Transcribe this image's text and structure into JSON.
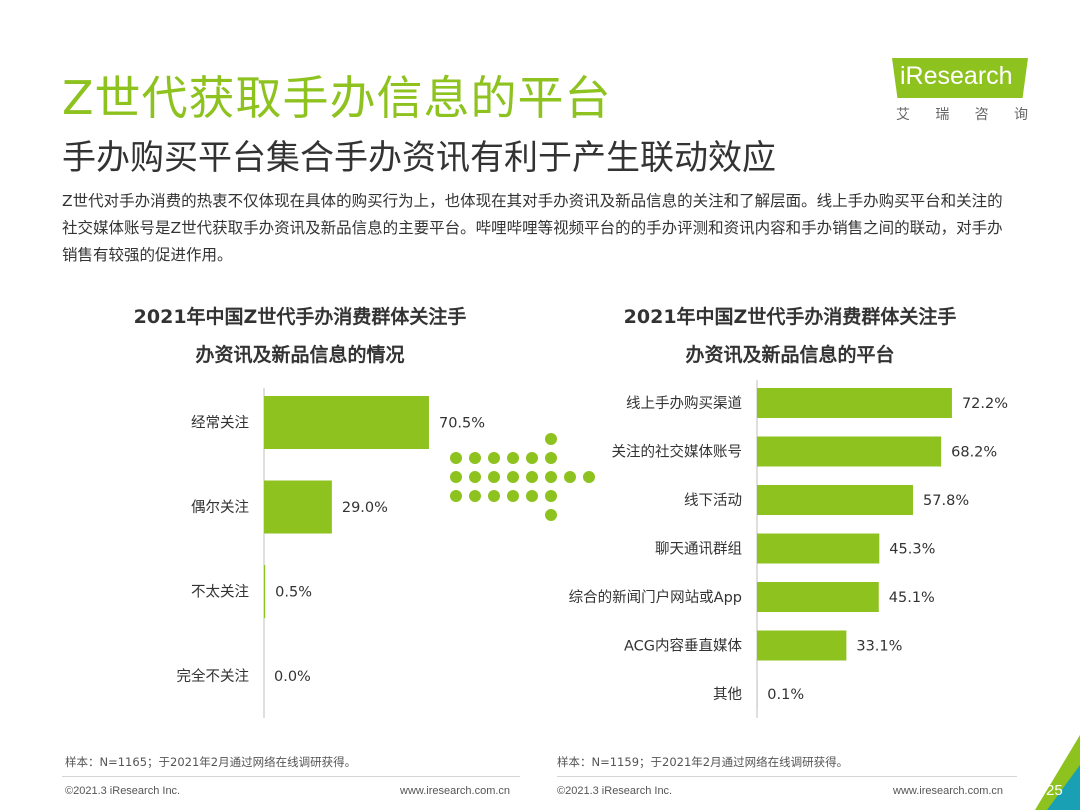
{
  "page": {
    "title": "Z世代获取手办信息的平台",
    "subtitle": "手办购买平台集合手办资讯有利于产生联动效应",
    "intro": "Z世代对手办消费的热衷不仅体现在具体的购买行为上，也体现在其对手办资讯及新品信息的关注和了解层面。线上手办购买平台和关注的社交媒体账号是Z世代获取手办资讯及新品信息的主要平台。哔哩哔哩等视频平台的的手办评测和资讯内容和手办销售之间的联动，对手办销售有较强的促进作用。",
    "page_number": "25"
  },
  "logo": {
    "text": "iResearch",
    "chars": [
      "艾",
      "瑞",
      "咨",
      "询"
    ]
  },
  "colors": {
    "accent": "#8dc21f",
    "dark_accent": "#1aa0b4"
  },
  "chart_data": [
    {
      "type": "bar",
      "orientation": "horizontal",
      "title_lines": [
        "2021年中国Z世代手办消费群体关注手",
        "办资讯及新品信息的情况"
      ],
      "categories": [
        "经常关注",
        "偶尔关注",
        "不太关注",
        "完全不关注"
      ],
      "values": [
        70.5,
        29.0,
        0.5,
        0.0
      ],
      "value_labels": [
        "70.5%",
        "29.0%",
        "0.5%",
        "0.0%"
      ],
      "unit": "%",
      "xlim": [
        0,
        100
      ],
      "note": "样本：N=1165；于2021年2月通过网络在线调研获得。"
    },
    {
      "type": "bar",
      "orientation": "horizontal",
      "title_lines": [
        "2021年中国Z世代手办消费群体关注手",
        "办资讯及新品信息的平台"
      ],
      "categories": [
        "线上手办购买渠道",
        "关注的社交媒体账号",
        "线下活动",
        "聊天通讯群组",
        "综合的新闻门户网站或App",
        "ACG内容垂直媒体",
        "其他"
      ],
      "values": [
        72.2,
        68.2,
        57.8,
        45.3,
        45.1,
        33.1,
        0.1
      ],
      "value_labels": [
        "72.2%",
        "68.2%",
        "57.8%",
        "45.3%",
        "45.1%",
        "33.1%",
        "0.1%"
      ],
      "unit": "%",
      "xlim": [
        0,
        100
      ],
      "note": "样本：N=1159；于2021年2月通过网络在线调研获得。"
    }
  ],
  "footer": {
    "copyright": "©2021.3 iResearch Inc.",
    "url": "www.iresearch.com.cn"
  }
}
